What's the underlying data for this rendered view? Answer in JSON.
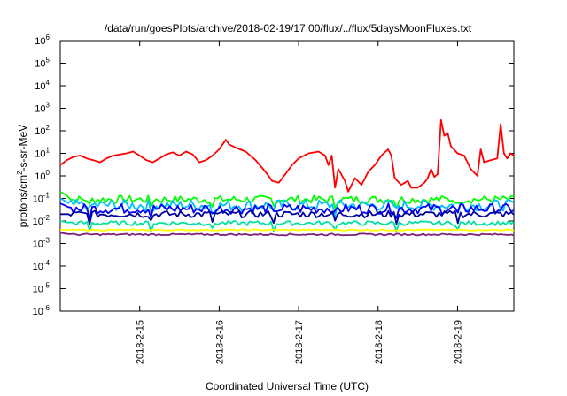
{
  "chart_data": {
    "type": "line",
    "title": "/data/run/goesPlots/archive/2018-02-19/17:00/flux/../flux/5daysMoonFluxes.txt",
    "xlabel": "Coordinated Universal Time (UTC)",
    "ylabel": "protons/cm²-s-sr-MeV",
    "yscale": "log",
    "ylim": [
      1e-06,
      1000000.0
    ],
    "xlim": [
      "2018-02-14T00:00",
      "2018-02-19T17:00"
    ],
    "y_ticks": [
      {
        "base": "10",
        "exp": "-6"
      },
      {
        "base": "10",
        "exp": "-5"
      },
      {
        "base": "10",
        "exp": "-4"
      },
      {
        "base": "10",
        "exp": "-3"
      },
      {
        "base": "10",
        "exp": "-2"
      },
      {
        "base": "10",
        "exp": "-1"
      },
      {
        "base": "10",
        "exp": "0"
      },
      {
        "base": "10",
        "exp": "1"
      },
      {
        "base": "10",
        "exp": "2"
      },
      {
        "base": "10",
        "exp": "3"
      },
      {
        "base": "10",
        "exp": "4"
      },
      {
        "base": "10",
        "exp": "5"
      },
      {
        "base": "10",
        "exp": "6"
      }
    ],
    "x_ticks": [
      "2018-2-15",
      "2018-2-16",
      "2018-2-17",
      "2018-2-18",
      "2018-2-19"
    ],
    "grid": false,
    "legend": "none",
    "series": [
      {
        "color": "#ff0000",
        "points": [
          [
            "2018-02-14T00:00",
            3
          ],
          [
            "2018-02-14T02:00",
            5
          ],
          [
            "2018-02-14T04:00",
            7
          ],
          [
            "2018-02-14T06:00",
            8
          ],
          [
            "2018-02-14T08:00",
            6
          ],
          [
            "2018-02-14T10:00",
            5
          ],
          [
            "2018-02-14T12:00",
            4
          ],
          [
            "2018-02-14T14:00",
            6
          ],
          [
            "2018-02-14T16:00",
            8
          ],
          [
            "2018-02-14T18:00",
            9
          ],
          [
            "2018-02-14T20:00",
            10
          ],
          [
            "2018-02-14T22:00",
            12
          ],
          [
            "2018-02-15T00:00",
            8
          ],
          [
            "2018-02-15T02:00",
            5
          ],
          [
            "2018-02-15T04:00",
            4
          ],
          [
            "2018-02-15T06:00",
            6
          ],
          [
            "2018-02-15T08:00",
            9
          ],
          [
            "2018-02-15T10:00",
            11
          ],
          [
            "2018-02-15T12:00",
            8
          ],
          [
            "2018-02-15T14:00",
            12
          ],
          [
            "2018-02-15T16:00",
            9
          ],
          [
            "2018-02-15T18:00",
            4
          ],
          [
            "2018-02-15T20:00",
            5
          ],
          [
            "2018-02-15T22:00",
            8
          ],
          [
            "2018-02-16T00:00",
            15
          ],
          [
            "2018-02-16T02:00",
            40
          ],
          [
            "2018-02-16T03:00",
            25
          ],
          [
            "2018-02-16T05:00",
            18
          ],
          [
            "2018-02-16T08:00",
            12
          ],
          [
            "2018-02-16T11:00",
            5
          ],
          [
            "2018-02-16T14:00",
            1.5
          ],
          [
            "2018-02-16T16:00",
            0.6
          ],
          [
            "2018-02-16T18:00",
            0.5
          ],
          [
            "2018-02-16T20:00",
            1.2
          ],
          [
            "2018-02-16T22:00",
            3
          ],
          [
            "2018-02-17T00:00",
            6
          ],
          [
            "2018-02-17T03:00",
            10
          ],
          [
            "2018-02-17T06:00",
            12
          ],
          [
            "2018-02-17T08:00",
            8
          ],
          [
            "2018-02-17T09:00",
            3
          ],
          [
            "2018-02-17T10:00",
            8
          ],
          [
            "2018-02-17T11:00",
            0.3
          ],
          [
            "2018-02-17T12:00",
            2
          ],
          [
            "2018-02-17T14:00",
            0.6
          ],
          [
            "2018-02-17T15:00",
            0.2
          ],
          [
            "2018-02-17T17:00",
            0.8
          ],
          [
            "2018-02-17T19:00",
            0.4
          ],
          [
            "2018-02-17T21:00",
            1.5
          ],
          [
            "2018-02-17T23:00",
            3
          ],
          [
            "2018-02-18T01:00",
            8
          ],
          [
            "2018-02-18T03:00",
            15
          ],
          [
            "2018-02-18T04:00",
            8
          ],
          [
            "2018-02-18T05:00",
            0.8
          ],
          [
            "2018-02-18T07:00",
            0.4
          ],
          [
            "2018-02-18T09:00",
            0.6
          ],
          [
            "2018-02-18T10:00",
            0.3
          ],
          [
            "2018-02-18T12:00",
            0.3
          ],
          [
            "2018-02-18T14:00",
            0.5
          ],
          [
            "2018-02-18T15:00",
            0.8
          ],
          [
            "2018-02-18T16:00",
            2
          ],
          [
            "2018-02-18T17:00",
            0.9
          ],
          [
            "2018-02-18T18:00",
            1.2
          ],
          [
            "2018-02-18T19:00",
            300
          ],
          [
            "2018-02-18T20:00",
            60
          ],
          [
            "2018-02-18T21:00",
            80
          ],
          [
            "2018-02-18T22:00",
            20
          ],
          [
            "2018-02-19T00:00",
            10
          ],
          [
            "2018-02-19T02:00",
            8
          ],
          [
            "2018-02-19T04:00",
            2
          ],
          [
            "2018-02-19T06:00",
            1
          ],
          [
            "2018-02-19T07:00",
            15
          ],
          [
            "2018-02-19T08:00",
            4
          ],
          [
            "2018-02-19T10:00",
            5
          ],
          [
            "2018-02-19T12:00",
            6
          ],
          [
            "2018-02-19T13:00",
            200
          ],
          [
            "2018-02-19T14:00",
            10
          ],
          [
            "2018-02-19T15:00",
            6
          ],
          [
            "2018-02-19T16:00",
            10
          ],
          [
            "2018-02-19T17:00",
            8
          ]
        ]
      },
      {
        "color": "#00ff00",
        "level": 0.09,
        "wiggle": 0.35,
        "start": 0.2
      },
      {
        "color": "#00c0ff",
        "level": 0.05,
        "wiggle": 0.5,
        "start": 0.1
      },
      {
        "color": "#0000ff",
        "level": 0.035,
        "wiggle": 0.45,
        "start": 0.06
      },
      {
        "color": "#0000a0",
        "level": 0.02,
        "wiggle": 0.3,
        "start": 0.02
      },
      {
        "color": "#00e0a0",
        "level": 0.008,
        "wiggle": 0.2,
        "start": 0.01
      },
      {
        "color": "#ffff00",
        "level": 0.004,
        "wiggle": 0.06,
        "start": 0.004
      },
      {
        "color": "#802080",
        "level": 0.0025,
        "wiggle": 0.08,
        "start": 0.003
      }
    ]
  }
}
